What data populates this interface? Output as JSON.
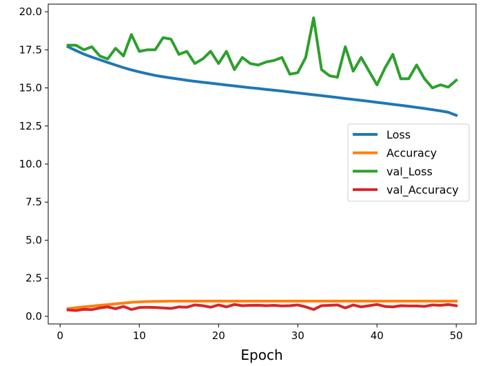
{
  "chart_data": {
    "type": "line",
    "xlabel": "Epoch",
    "ylabel": "",
    "title": "",
    "xlim": [
      -1.5,
      52.5
    ],
    "ylim": [
      -0.5,
      20.5
    ],
    "xticks": [
      0,
      10,
      20,
      30,
      40,
      50
    ],
    "yticks": [
      0.0,
      2.5,
      5.0,
      7.5,
      10.0,
      12.5,
      15.0,
      17.5,
      20.0
    ],
    "ytick_labels": [
      "0.0",
      "2.5",
      "5.0",
      "7.5",
      "10.0",
      "12.5",
      "15.0",
      "17.5",
      "20.0"
    ],
    "grid": false,
    "legend_position": "center-right",
    "x": [
      1,
      2,
      3,
      4,
      5,
      6,
      7,
      8,
      9,
      10,
      11,
      12,
      13,
      14,
      15,
      16,
      17,
      18,
      19,
      20,
      21,
      22,
      23,
      24,
      25,
      26,
      27,
      28,
      29,
      30,
      31,
      32,
      33,
      34,
      35,
      36,
      37,
      38,
      39,
      40,
      41,
      42,
      43,
      44,
      45,
      46,
      47,
      48,
      49,
      50
    ],
    "series": [
      {
        "name": "Loss",
        "color": "#1f77b4",
        "values": [
          17.7,
          17.45,
          17.22,
          17.02,
          16.85,
          16.67,
          16.5,
          16.33,
          16.18,
          16.05,
          15.93,
          15.82,
          15.73,
          15.65,
          15.58,
          15.5,
          15.43,
          15.37,
          15.31,
          15.25,
          15.19,
          15.13,
          15.07,
          15.01,
          14.96,
          14.9,
          14.85,
          14.79,
          14.73,
          14.67,
          14.61,
          14.55,
          14.49,
          14.43,
          14.37,
          14.3,
          14.24,
          14.18,
          14.12,
          14.05,
          13.99,
          13.92,
          13.86,
          13.79,
          13.72,
          13.65,
          13.57,
          13.49,
          13.4,
          13.2
        ]
      },
      {
        "name": "Accuracy",
        "color": "#ff7f0e",
        "values": [
          0.5,
          0.57,
          0.62,
          0.67,
          0.72,
          0.77,
          0.82,
          0.87,
          0.92,
          0.95,
          0.97,
          0.98,
          0.99,
          1.0,
          1.0,
          1.0,
          1.0,
          1.0,
          1.0,
          1.0,
          1.0,
          1.0,
          1.0,
          1.0,
          1.0,
          1.0,
          1.0,
          1.0,
          1.0,
          1.0,
          1.0,
          1.0,
          1.0,
          1.0,
          1.0,
          1.0,
          1.0,
          1.0,
          1.0,
          1.0,
          1.0,
          1.0,
          1.0,
          1.0,
          1.0,
          1.0,
          1.0,
          1.0,
          1.0,
          1.0
        ]
      },
      {
        "name": "val_Loss",
        "color": "#2ca02c",
        "values": [
          17.8,
          17.8,
          17.5,
          17.7,
          17.1,
          16.9,
          17.6,
          17.1,
          18.5,
          17.4,
          17.5,
          17.5,
          18.3,
          18.2,
          17.2,
          17.4,
          16.6,
          16.9,
          17.4,
          16.6,
          17.4,
          16.2,
          17.0,
          16.6,
          16.5,
          16.7,
          16.8,
          17.0,
          15.9,
          16.0,
          17.0,
          19.6,
          16.2,
          15.8,
          15.7,
          17.7,
          16.1,
          17.0,
          16.1,
          15.2,
          16.3,
          17.2,
          15.6,
          15.6,
          16.5,
          15.6,
          15.0,
          15.2,
          15.05,
          15.5
        ]
      },
      {
        "name": "val_Accuracy",
        "color": "#d62728",
        "values": [
          0.42,
          0.38,
          0.46,
          0.44,
          0.55,
          0.62,
          0.5,
          0.65,
          0.45,
          0.58,
          0.6,
          0.58,
          0.55,
          0.52,
          0.62,
          0.6,
          0.75,
          0.7,
          0.6,
          0.75,
          0.62,
          0.78,
          0.7,
          0.72,
          0.73,
          0.7,
          0.72,
          0.68,
          0.7,
          0.75,
          0.62,
          0.45,
          0.7,
          0.72,
          0.75,
          0.55,
          0.75,
          0.62,
          0.7,
          0.78,
          0.65,
          0.62,
          0.7,
          0.68,
          0.68,
          0.65,
          0.75,
          0.72,
          0.78,
          0.7
        ]
      }
    ]
  }
}
